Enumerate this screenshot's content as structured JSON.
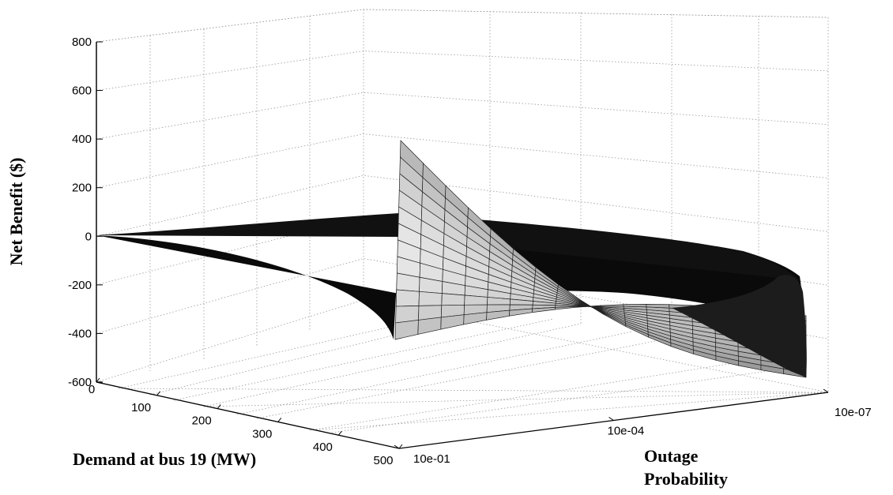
{
  "chart_data": {
    "type": "surface3d",
    "title": "",
    "zlabel": "Net Benefit ($)",
    "xlabel": "Demand at bus 19 (MW)",
    "ylabel_lines": [
      "Outage",
      "Probability"
    ],
    "z_ticks": [
      800,
      600,
      400,
      200,
      0,
      -200,
      -400,
      -600
    ],
    "zlim": [
      -600,
      800
    ],
    "x_ticks": [
      0,
      100,
      200,
      300,
      400,
      500
    ],
    "xlim": [
      0,
      500
    ],
    "y_ticks": [
      "10e-01",
      "10e-04",
      "10e-07"
    ],
    "y_scale": "log",
    "grid": true,
    "colormap": "gray",
    "surface_summary": {
      "corners": [
        {
          "demand_mw": 0,
          "outage_probability": "10e-01",
          "net_benefit": 0
        },
        {
          "demand_mw": 0,
          "outage_probability": "10e-07",
          "net_benefit": 0
        },
        {
          "demand_mw": 500,
          "outage_probability": "10e-01",
          "net_benefit": 410
        },
        {
          "demand_mw": 500,
          "outage_probability": "10e-07",
          "net_benefit": -560
        }
      ],
      "peak_net_benefit": 410,
      "min_net_benefit": -560
    }
  }
}
